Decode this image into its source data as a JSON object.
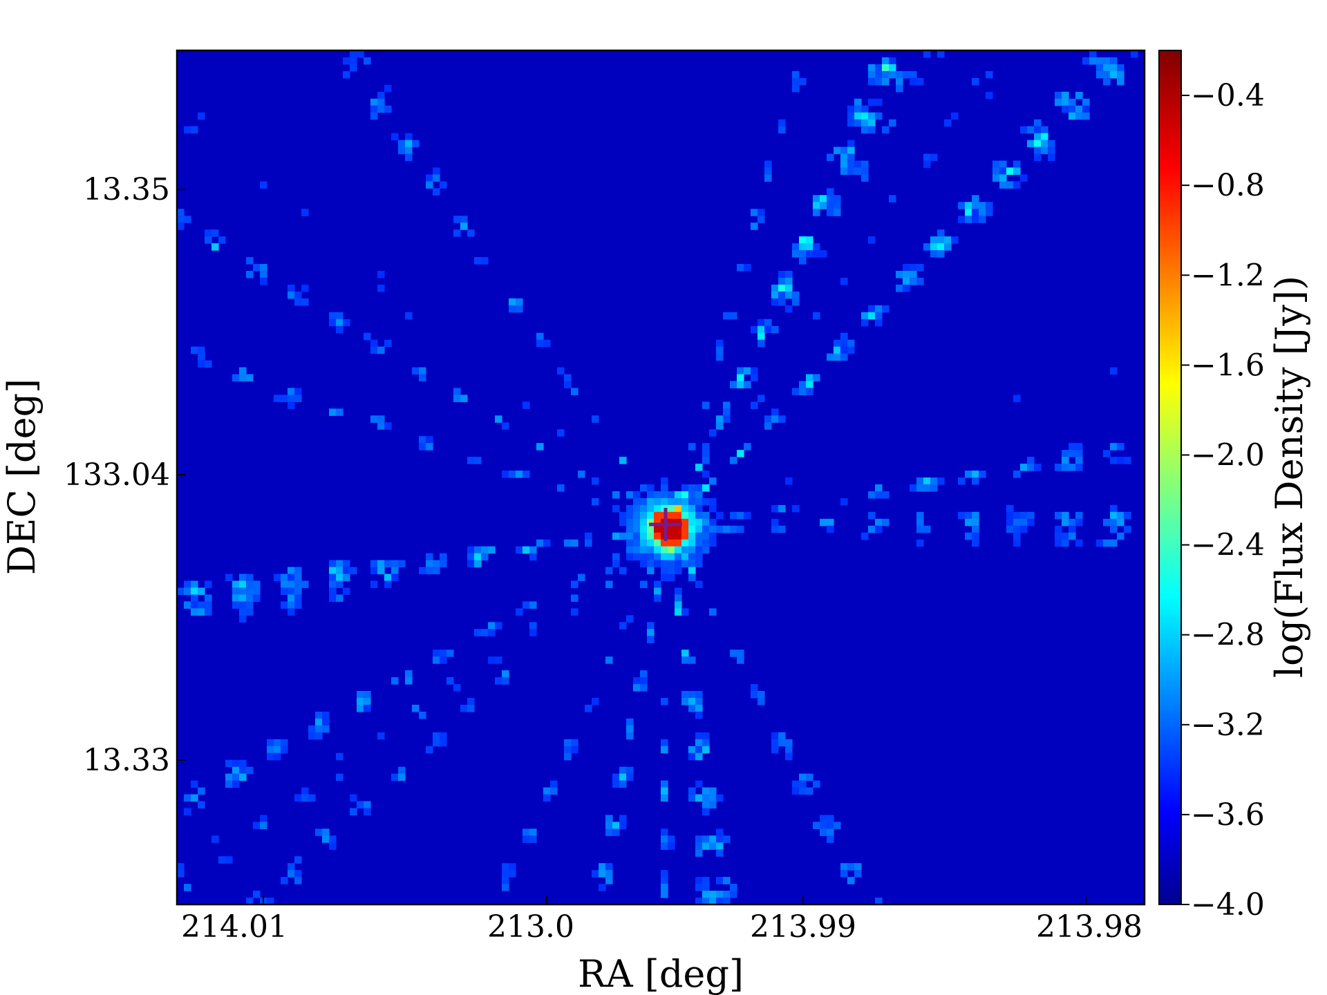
{
  "chart_data": {
    "type": "heatmap",
    "title": "",
    "xlabel": "RA [deg]",
    "ylabel": "DEC [deg]",
    "x_tick_labels": [
      "214.01",
      "213.0",
      "213.99",
      "213.98"
    ],
    "y_tick_labels": [
      "13.35",
      "133.04",
      "13.33"
    ],
    "colorbar": {
      "label": "log(Flux Density [Jy])",
      "colormap": "jet",
      "range": [
        -4.0,
        -0.2
      ],
      "tick_labels": [
        "−0.4",
        "−0.8",
        "−1.2",
        "−1.6",
        "−2.0",
        "−2.4",
        "−2.8",
        "−3.2",
        "−3.6",
        "−4.0"
      ],
      "tick_values": [
        -0.4,
        -0.8,
        -1.2,
        -1.6,
        -2.0,
        -2.4,
        -2.8,
        -3.2,
        -3.6,
        -4.0
      ]
    },
    "grid": false,
    "description_of_field": {
      "peak_value": -0.2,
      "background_value": -4.0,
      "source_position": "near center"
    }
  }
}
